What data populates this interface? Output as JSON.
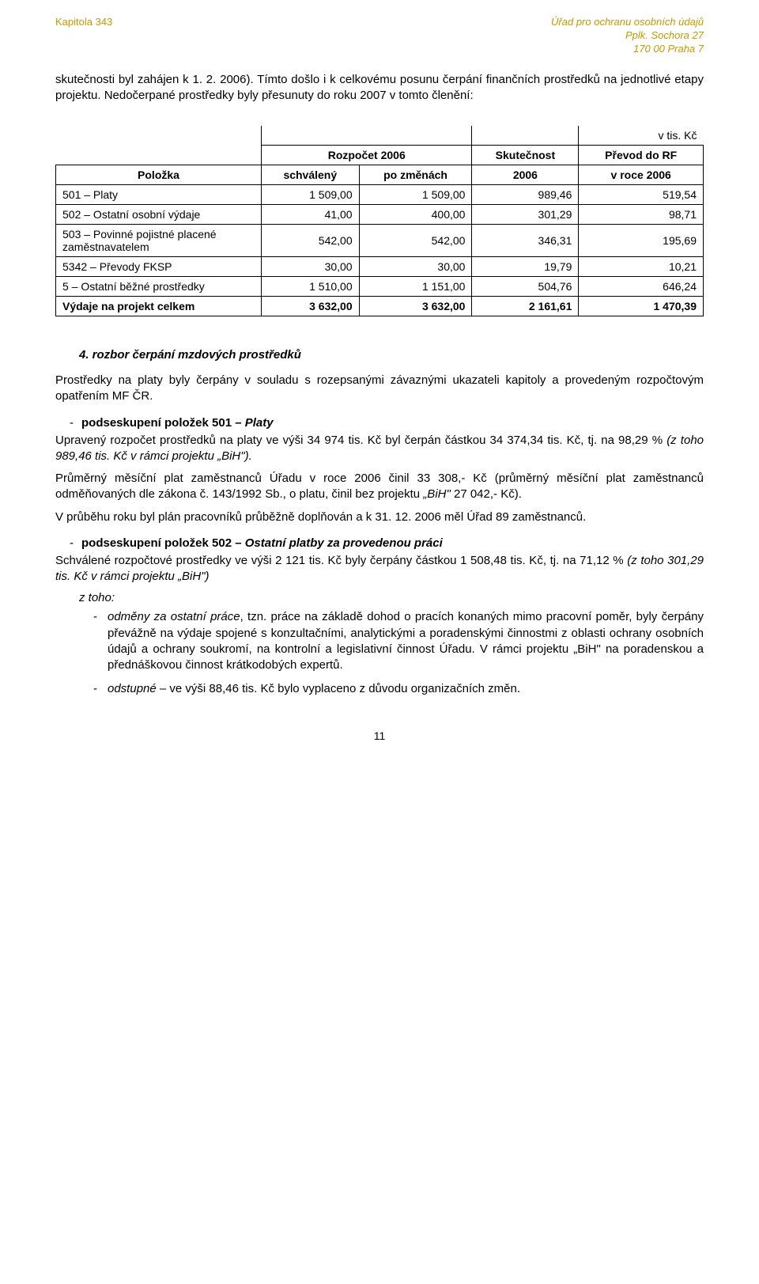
{
  "header": {
    "left": "Kapitola 343",
    "right": [
      "Úřad pro ochranu osobních údajů",
      "Pplk. Sochora 27",
      "170 00  Praha 7"
    ]
  },
  "intro_text": "skutečnosti byl zahájen k 1. 2. 2006). Tímto došlo i k celkovému posunu čerpání finančních prostředků na jednotlivé etapy projektu. Nedočerpané prostředky byly přesunuty do roku 2007 v tomto členění:",
  "table": {
    "unit_label": "v  tis. Kč",
    "headers": {
      "polozka": "Položka",
      "rozpocet": "Rozpočet 2006",
      "schvaleny": "schválený",
      "po_zmenach": "po změnách",
      "skutecnost": "Skutečnost",
      "skutecnost_year": "2006",
      "prevod": "Převod do RF",
      "prevod_year": "v  roce 2006"
    },
    "rows": [
      {
        "label": "501 – Platy",
        "c1": "1 509,00",
        "c2": "1 509,00",
        "c3": "989,46",
        "c4": "519,54",
        "bold": false
      },
      {
        "label": "502 – Ostatní osobní výdaje",
        "c1": "41,00",
        "c2": "400,00",
        "c3": "301,29",
        "c4": "98,71",
        "bold": false
      },
      {
        "label": "503 – Povinné pojistné placené zaměstnavatelem",
        "c1": "542,00",
        "c2": "542,00",
        "c3": "346,31",
        "c4": "195,69",
        "bold": false
      },
      {
        "label": "5342 – Převody FKSP",
        "c1": "30,00",
        "c2": "30,00",
        "c3": "19,79",
        "c4": "10,21",
        "bold": false
      },
      {
        "label": "5 – Ostatní běžné prostředky",
        "c1": "1 510,00",
        "c2": "1 151,00",
        "c3": "504,76",
        "c4": "646,24",
        "bold": false
      },
      {
        "label": "Výdaje na projekt celkem",
        "c1": "3 632,00",
        "c2": "3 632,00",
        "c3": "2 161,61",
        "c4": "1 470,39",
        "bold": true
      }
    ]
  },
  "section4": {
    "title": "4. rozbor čerpání mzdových prostředků",
    "p1": "Prostředky na platy byly čerpány v souladu s rozepsanými závaznými ukazateli kapitoly a provedeným rozpočtovým opatřením MF ČR.",
    "sub501_prefix": "podseskupení položek 501 – ",
    "sub501_suffix": "Platy",
    "p2a": "Upravený rozpočet  prostředků na platy ve výši 34 974 tis. Kč byl čerpán částkou 34 374,34  tis. Kč, tj.  na  98,29 % ",
    "p2b": "(z toho 989,46 tis. Kč v rámci projektu „BiH\").",
    "p3a": "Průměrný měsíční plat zaměstnanců Úřadu v roce 2006 činil  33 308,- Kč (průměrný měsíční plat zaměstnanců odměňovaných dle zákona č. 143/1992 Sb., o platu, činil bez projektu ",
    "p3b": "„BiH\"  ",
    "p3c": "27 042,- Kč).",
    "p4": "V průběhu roku byl plán pracovníků průběžně doplňován a k  31. 12. 2006 měl Úřad 89  zaměstnanců.",
    "sub502_prefix": "podseskupení položek 502 – ",
    "sub502_suffix": "Ostatní platby za provedenou práci",
    "p5a": "Schválené rozpočtové prostředky ve výši 2 121 tis. Kč byly čerpány částkou 1 508,48 tis. Kč, tj. na 71,12 % ",
    "p5b": "(z toho  301,29  tis. Kč v rámci projektu „BiH\")",
    "z_toho": "z toho:",
    "li1_a": "odměny za ostatní práce",
    "li1_b": ", tzn. práce na základě dohod o pracích konaných mimo pracovní poměr, byly čerpány  převážně na výdaje spojené s konzultačními, analytickými a poradenskými činnostmi z oblasti ochrany osobních údajů a ochrany soukromí, na kontrolní a legislativní činnost Úřadu. V rámci projektu „BiH\" na poradenskou a přednáškovou činnost krátkodobých expertů.",
    "li2_a": "odstupné",
    "li2_b": " – ve výši 88,46 tis. Kč bylo vyplaceno z důvodu organizačních změn."
  },
  "page_number": "11"
}
